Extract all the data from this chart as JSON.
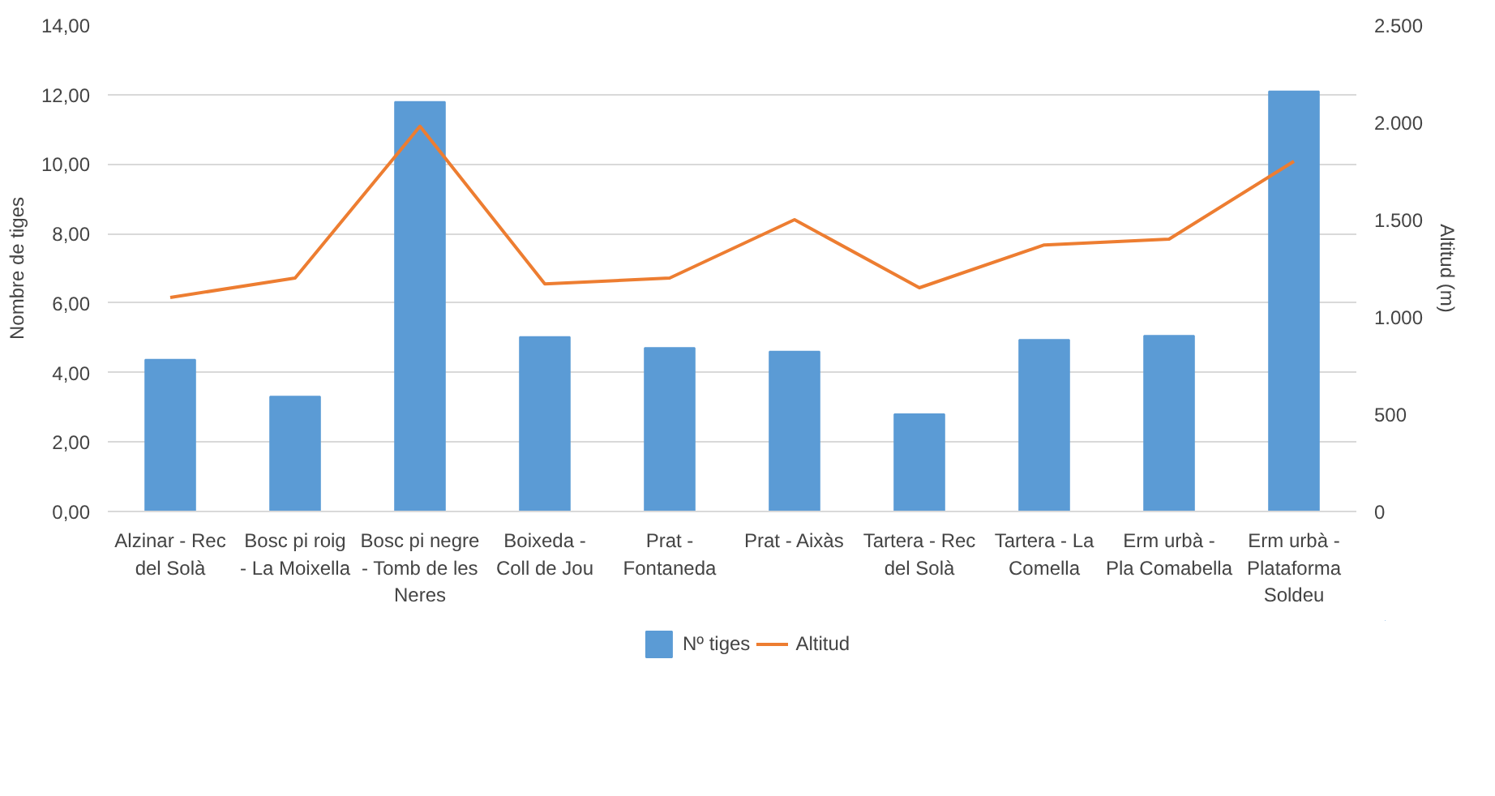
{
  "chart_data": {
    "type": "bar",
    "categories": [
      "Alzinar - Rec del Solà",
      "Bosc pi roig - La Moixella",
      "Bosc pi negre - Tomb de les Neres",
      "Boixeda - Coll de Jou",
      "Prat - Fontaneda",
      "Prat - Aixàs",
      "Tartera - Rec del Solà",
      "Tartera - La Comella",
      "Erm urbà - Pla Comabella",
      "Erm urbà - Plataforma Soldeu"
    ],
    "series": [
      {
        "name": "Nº tiges",
        "color": "#5b9bd5",
        "values": [
          4.37,
          3.31,
          11.79,
          5.02,
          4.71,
          4.6,
          2.8,
          4.94,
          5.06,
          12.09
        ]
      },
      {
        "name": "Altitud",
        "color": "#ed7d31",
        "type": "line",
        "axis": "y2",
        "values": [
          1100,
          1200,
          1980,
          1170,
          1200,
          1500,
          1150,
          1370,
          1400,
          1800
        ]
      }
    ],
    "ylabel": "Nombre de tiges",
    "y2label": "Altitud (m)",
    "ylim": [
      0,
      14
    ],
    "yticks": [
      {
        "value": 0,
        "label": "0,00"
      },
      {
        "value": 2,
        "label": "2,00"
      },
      {
        "value": 4,
        "label": "4,00"
      },
      {
        "value": 6,
        "label": "6,00"
      },
      {
        "value": 8,
        "label": "8,00"
      },
      {
        "value": 10,
        "label": "10,00"
      },
      {
        "value": 12,
        "label": "12,00"
      },
      {
        "value": 14,
        "label": "14,00"
      }
    ],
    "y2lim": [
      0,
      2500
    ],
    "y2ticks": [
      0,
      500,
      {
        "value": 1000,
        "label": "1.000"
      },
      {
        "value": 1500,
        "label": "1.500"
      },
      {
        "value": 2000,
        "label": "2.000"
      },
      {
        "value": 2500,
        "label": "2.500"
      }
    ],
    "grid": "y",
    "legend": "bottom",
    "marker": "none",
    "line_style": "solid"
  }
}
